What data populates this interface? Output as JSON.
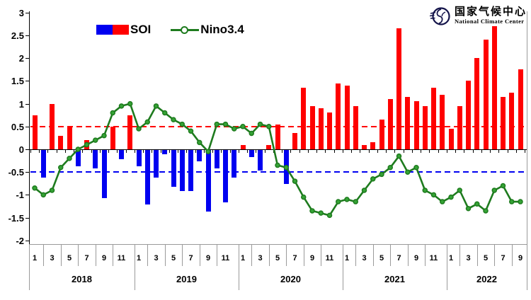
{
  "legend": {
    "soi": "SOI",
    "nino": "Nino3.4"
  },
  "logo": {
    "zh": "国家气候中心",
    "en": "National Climate Center"
  },
  "colors": {
    "bar_positive": "#ff0000",
    "bar_negative": "#0000f0",
    "line": "#1e7b1e",
    "marker_fill": "#35a335",
    "threshold_upper": "#ff0000",
    "threshold_lower": "#0000f0",
    "axis": "#000000",
    "frame": "#9a9a9a"
  },
  "chart_data": {
    "type": "bar+line combo",
    "title": "",
    "xlabel": "",
    "ylabel": "",
    "ylim": [
      -2,
      3
    ],
    "y_tick_step": 0.5,
    "y_tick_labels": [
      "3",
      "2.5",
      "2",
      "1.5",
      "1",
      "0.5",
      "0",
      "-0.5",
      "-1",
      "-1.5",
      "-2"
    ],
    "grid": false,
    "legend_position": "top-left-inside",
    "thresholds": {
      "upper": 0.5,
      "lower": -0.5,
      "upper_style": "red dashed",
      "lower_style": "blue dashed"
    },
    "x_structure": {
      "years": [
        "2018",
        "2019",
        "2020",
        "2021",
        "2022"
      ],
      "months_per_year": [
        12,
        12,
        12,
        12,
        9
      ],
      "month_tick_labels_shown": [
        "1",
        "3",
        "5",
        "7",
        "9",
        "11"
      ],
      "first_month": "2018-01",
      "last_month": "2022-09"
    },
    "series": [
      {
        "name": "SOI",
        "type": "bar",
        "positive_color": "#ff0000",
        "negative_color": "#0000f0",
        "values": [
          0.75,
          -0.6,
          1.0,
          0.3,
          0.5,
          -0.35,
          0.2,
          -0.4,
          -1.05,
          0.5,
          -0.2,
          0.75,
          -0.35,
          -1.2,
          -0.6,
          -0.1,
          -0.8,
          -0.9,
          -0.9,
          -0.25,
          -1.35,
          -0.4,
          -1.15,
          -0.6,
          0.1,
          -0.15,
          -0.45,
          0.1,
          0.55,
          -0.75,
          0.35,
          1.35,
          0.95,
          0.9,
          0.8,
          1.45,
          1.4,
          0.95,
          0.1,
          0.15,
          0.65,
          1.1,
          2.65,
          1.15,
          1.05,
          0.95,
          1.35,
          1.2,
          0.45,
          0.95,
          1.5,
          2.0,
          2.4,
          2.7,
          1.15,
          1.25,
          1.75
        ]
      },
      {
        "name": "Nino3.4",
        "type": "line",
        "color": "#1e7b1e",
        "marker": "circle",
        "values": [
          -0.85,
          -1.0,
          -0.9,
          -0.4,
          -0.2,
          0.0,
          0.1,
          0.2,
          0.3,
          0.8,
          0.95,
          1.0,
          0.45,
          0.6,
          0.95,
          0.8,
          0.65,
          0.55,
          0.4,
          0.15,
          -0.05,
          0.55,
          0.55,
          0.45,
          0.5,
          0.35,
          0.55,
          0.5,
          -0.35,
          -0.4,
          -0.7,
          -1.05,
          -1.35,
          -1.4,
          -1.45,
          -1.15,
          -1.1,
          -1.15,
          -0.9,
          -0.65,
          -0.55,
          -0.4,
          -0.15,
          -0.5,
          -0.4,
          -0.9,
          -1.0,
          -1.15,
          -1.05,
          -0.9,
          -1.3,
          -1.2,
          -1.35,
          -0.9,
          -0.8,
          -1.15,
          -1.15
        ]
      }
    ]
  }
}
